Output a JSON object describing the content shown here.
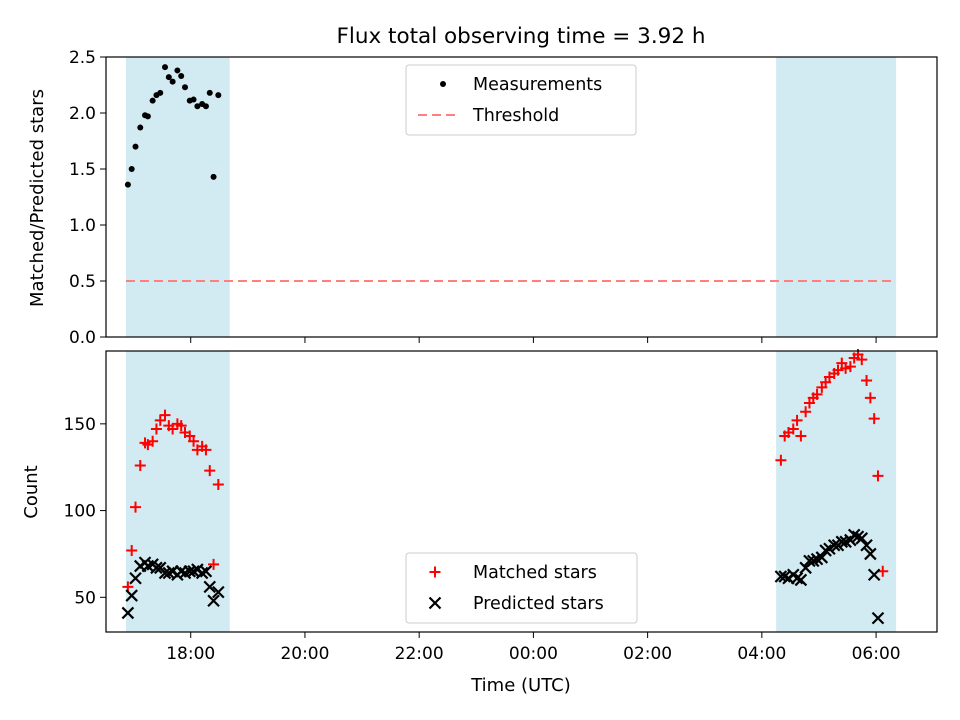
{
  "chart_data": {
    "title": "Flux total observing time = 3.92 h",
    "xlabel": "Time (UTC)",
    "x_ticks": [
      "18:00",
      "20:00",
      "22:00",
      "00:00",
      "02:00",
      "04:00",
      "06:00"
    ],
    "shaded_intervals": [
      [
        "16:52",
        "18:41"
      ],
      [
        "04:15",
        "06:21"
      ]
    ],
    "shade_color": "#add8e6",
    "panels": [
      {
        "type": "scatter",
        "ylabel": "Matched/Predicted stars",
        "ylim": [
          0,
          2.5
        ],
        "y_ticks": [
          "0.0",
          "0.5",
          "1.0",
          "1.5",
          "2.0",
          "2.5"
        ],
        "legend_position": "top-center",
        "series": [
          {
            "name": "Measurements",
            "marker": "dot",
            "color": "#000000",
            "points": [
              [
                "16:54",
                1.36
              ],
              [
                "16:58",
                1.5
              ],
              [
                "17:02",
                1.7
              ],
              [
                "17:07",
                1.87
              ],
              [
                "17:12",
                1.98
              ],
              [
                "17:15",
                1.97
              ],
              [
                "17:20",
                2.11
              ],
              [
                "17:24",
                2.16
              ],
              [
                "17:28",
                2.18
              ],
              [
                "17:33",
                2.41
              ],
              [
                "17:37",
                2.32
              ],
              [
                "17:41",
                2.28
              ],
              [
                "17:46",
                2.38
              ],
              [
                "17:50",
                2.33
              ],
              [
                "17:54",
                2.23
              ],
              [
                "17:59",
                2.11
              ],
              [
                "18:03",
                2.12
              ],
              [
                "18:07",
                2.06
              ],
              [
                "18:12",
                2.08
              ],
              [
                "18:16",
                2.06
              ],
              [
                "18:20",
                2.18
              ],
              [
                "18:24",
                1.43
              ],
              [
                "18:29",
                2.16
              ]
            ]
          },
          {
            "name": "Threshold",
            "type": "line",
            "style": "dashed",
            "color": "#ff7f7f",
            "y": 0.5
          }
        ]
      },
      {
        "type": "scatter",
        "ylabel": "Count",
        "ylim": [
          30,
          192
        ],
        "y_ticks": [
          "50",
          "100",
          "150"
        ],
        "legend_position": "bottom-center",
        "series": [
          {
            "name": "Matched stars",
            "marker": "plus",
            "color": "#ff0000",
            "points": [
              [
                "16:54",
                56
              ],
              [
                "16:58",
                77
              ],
              [
                "17:02",
                102
              ],
              [
                "17:07",
                126
              ],
              [
                "17:12",
                139
              ],
              [
                "17:15",
                138
              ],
              [
                "17:20",
                140
              ],
              [
                "17:24",
                147
              ],
              [
                "17:28",
                152
              ],
              [
                "17:33",
                155
              ],
              [
                "17:37",
                149
              ],
              [
                "17:41",
                147
              ],
              [
                "17:46",
                150
              ],
              [
                "17:50",
                149
              ],
              [
                "17:54",
                145
              ],
              [
                "17:59",
                143
              ],
              [
                "18:03",
                140
              ],
              [
                "18:07",
                135
              ],
              [
                "18:12",
                137
              ],
              [
                "18:16",
                135
              ],
              [
                "18:20",
                123
              ],
              [
                "18:24",
                69
              ],
              [
                "18:29",
                115
              ],
              [
                "04:20",
                129
              ],
              [
                "04:24",
                143
              ],
              [
                "04:28",
                145
              ],
              [
                "04:33",
                147
              ],
              [
                "04:37",
                152
              ],
              [
                "04:41",
                143
              ],
              [
                "04:46",
                157
              ],
              [
                "04:50",
                162
              ],
              [
                "04:54",
                165
              ],
              [
                "04:58",
                167
              ],
              [
                "05:03",
                171
              ],
              [
                "05:07",
                174
              ],
              [
                "05:11",
                177
              ],
              [
                "05:16",
                179
              ],
              [
                "05:20",
                181
              ],
              [
                "05:24",
                185
              ],
              [
                "05:28",
                182
              ],
              [
                "05:33",
                183
              ],
              [
                "05:37",
                188
              ],
              [
                "05:41",
                190
              ],
              [
                "05:45",
                187
              ],
              [
                "05:50",
                175
              ],
              [
                "05:54",
                165
              ],
              [
                "05:58",
                153
              ],
              [
                "06:02",
                120
              ],
              [
                "06:07",
                65
              ]
            ]
          },
          {
            "name": "Predicted stars",
            "marker": "x",
            "color": "#000000",
            "points": [
              [
                "16:54",
                41
              ],
              [
                "16:58",
                51
              ],
              [
                "17:02",
                61
              ],
              [
                "17:07",
                68
              ],
              [
                "17:12",
                70
              ],
              [
                "17:15",
                68
              ],
              [
                "17:20",
                69
              ],
              [
                "17:24",
                67
              ],
              [
                "17:28",
                67
              ],
              [
                "17:33",
                64
              ],
              [
                "17:37",
                64
              ],
              [
                "17:41",
                65
              ],
              [
                "17:46",
                63
              ],
              [
                "17:50",
                65
              ],
              [
                "17:54",
                64
              ],
              [
                "17:59",
                65
              ],
              [
                "18:03",
                65
              ],
              [
                "18:07",
                66
              ],
              [
                "18:12",
                64
              ],
              [
                "18:16",
                65
              ],
              [
                "18:20",
                56
              ],
              [
                "18:24",
                48
              ],
              [
                "18:29",
                53
              ],
              [
                "04:20",
                62
              ],
              [
                "04:24",
                62
              ],
              [
                "04:28",
                61
              ],
              [
                "04:33",
                63
              ],
              [
                "04:37",
                61
              ],
              [
                "04:41",
                60
              ],
              [
                "04:46",
                67
              ],
              [
                "04:50",
                71
              ],
              [
                "04:54",
                71
              ],
              [
                "04:58",
                72
              ],
              [
                "05:03",
                73
              ],
              [
                "05:07",
                77
              ],
              [
                "05:11",
                78
              ],
              [
                "05:16",
                80
              ],
              [
                "05:20",
                80
              ],
              [
                "05:24",
                82
              ],
              [
                "05:28",
                82
              ],
              [
                "05:33",
                83
              ],
              [
                "05:37",
                86
              ],
              [
                "05:41",
                85
              ],
              [
                "05:45",
                84
              ],
              [
                "05:50",
                80
              ],
              [
                "05:54",
                75
              ],
              [
                "05:58",
                63
              ],
              [
                "06:02",
                38
              ]
            ]
          }
        ]
      }
    ]
  }
}
